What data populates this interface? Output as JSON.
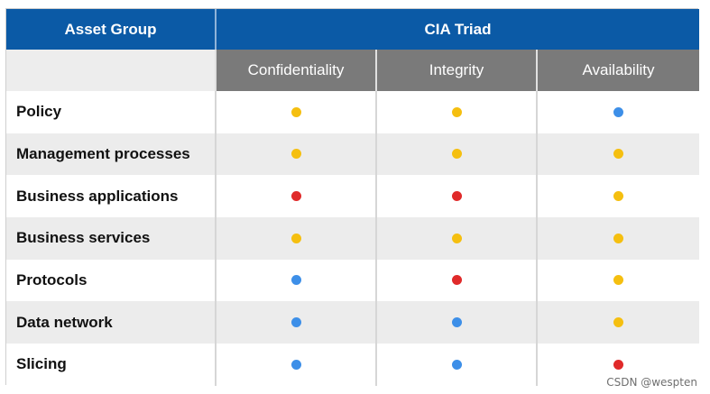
{
  "table": {
    "asset_group_header": "Asset Group",
    "cia_triad_header": "CIA Triad",
    "columns": [
      "Confidentiality",
      "Integrity",
      "Availability"
    ],
    "colors": {
      "yellow": "#f5bf10",
      "blue": "#3d8fe8",
      "red": "#e02a2a"
    },
    "rows": [
      {
        "asset": "Policy",
        "ratings": [
          "yellow",
          "yellow",
          "blue"
        ]
      },
      {
        "asset": "Management processes",
        "ratings": [
          "yellow",
          "yellow",
          "yellow"
        ]
      },
      {
        "asset": "Business applications",
        "ratings": [
          "red",
          "red",
          "yellow"
        ]
      },
      {
        "asset": "Business services",
        "ratings": [
          "yellow",
          "yellow",
          "yellow"
        ]
      },
      {
        "asset": "Protocols",
        "ratings": [
          "blue",
          "red",
          "yellow"
        ]
      },
      {
        "asset": "Data network",
        "ratings": [
          "blue",
          "blue",
          "yellow"
        ]
      },
      {
        "asset": "Slicing",
        "ratings": [
          "blue",
          "blue",
          "red"
        ]
      }
    ]
  },
  "watermark": "CSDN @wespten"
}
